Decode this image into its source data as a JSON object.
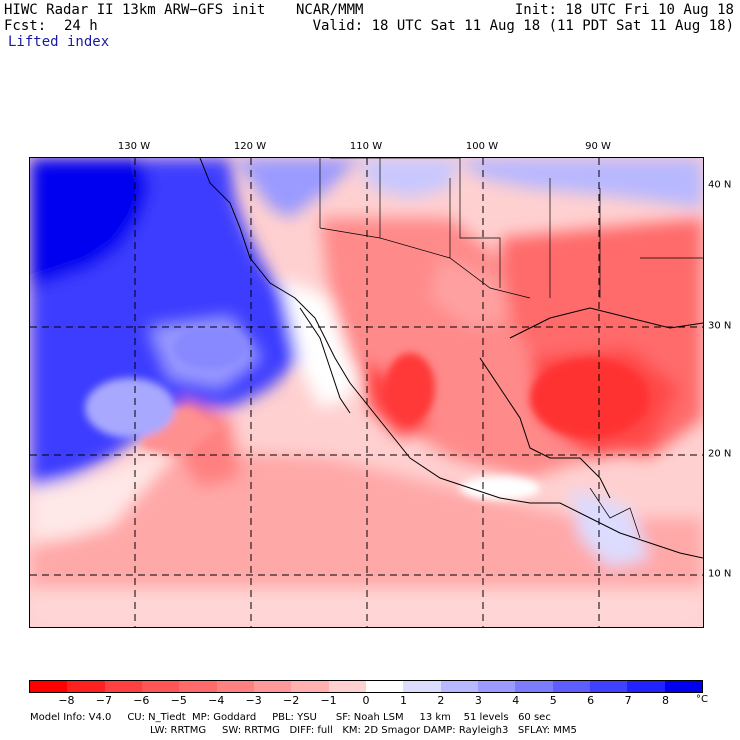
{
  "header": {
    "model_title": "HIWC Radar II 13km ARW−GFS init",
    "center": "NCAR/MMM",
    "init": "Init: 18 UTC Fri 10 Aug 18",
    "fcst_label": "Fcst:",
    "fcst_value": "24 h",
    "valid": "Valid: 18 UTC Sat 11 Aug 18 (11 PDT Sat 11 Aug 18)",
    "field": "Lifted index"
  },
  "map": {
    "lon_labels": [
      "130 W",
      "120 W",
      "110 W",
      "100 W",
      "90 W"
    ],
    "lat_labels": [
      "40 N",
      "30 N",
      "20 N",
      "10 N"
    ]
  },
  "colorbar": {
    "ticks": [
      "−8",
      "−7",
      "−6",
      "−5",
      "−4",
      "−3",
      "−2",
      "−1",
      "0",
      "1",
      "2",
      "3",
      "4",
      "5",
      "6",
      "7",
      "8"
    ],
    "unit": "°C",
    "colors": [
      "#ff0000",
      "#ff2020",
      "#ff4040",
      "#ff5555",
      "#ff6a6a",
      "#ff8080",
      "#ff9898",
      "#ffb0b0",
      "#ffd0d0",
      "#ffffff",
      "#dcdcff",
      "#b8b8ff",
      "#9a9aff",
      "#7c7cff",
      "#5e5eff",
      "#4040ff",
      "#2222ff",
      "#0000f0"
    ]
  },
  "footer": {
    "line1": "Model Info: V4.0     CU: N_Tiedt  MP: Goddard     PBL: YSU      SF: Noah LSM     13 km    51 levels   60 sec",
    "line2": "LW: RRTMG     SW: RRTMG   DIFF: full   KM: 2D Smagor DAMP: Rayleigh3   SFLAY: MM5"
  }
}
